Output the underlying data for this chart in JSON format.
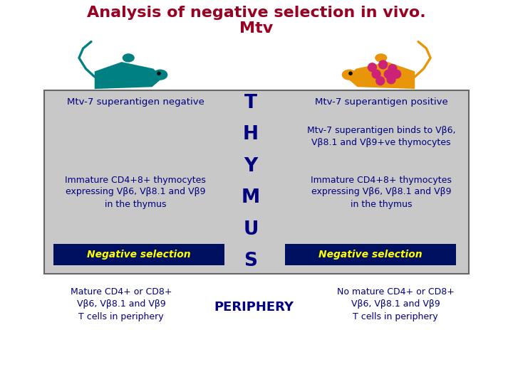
{
  "title_line1": "Analysis of negative selection in vivo.",
  "title_line2": "Mtv",
  "title_color": "#990022",
  "title_fontsize": 16,
  "bg_color": "#ffffff",
  "box_color": "#c8c8c8",
  "box_edge_color": "#666666",
  "text_color_dark": "#000080",
  "thymus_letters": [
    "T",
    "H",
    "Y",
    "M",
    "U",
    "S"
  ],
  "thymus_color": "#000080",
  "neg_sel_bg": "#001060",
  "neg_sel_text": "#ffff00",
  "left_top_label": "Mtv-7 superantigen negative",
  "right_top_label": "Mtv-7 superantigen positive",
  "right_bind_text": "Mtv-7 superantigen binds to Vβ6,\nVβ8.1 and Vβ9+ve thymocytes",
  "left_immature_text": "Immature CD4+8+ thymocytes\nexpressing Vβ6, Vβ8.1 and Vβ9\nin the thymus",
  "right_immature_text": "Immature CD4+8+ thymocytes\nexpressing Vβ6, Vβ8.1 and Vβ9\nin the thymus",
  "neg_sel_label": "Negative selection",
  "left_periphery_text": "Mature CD4+ or CD8+\nVβ6, Vβ8.1 and Vβ9\nT cells in periphery",
  "right_periphery_text": "No mature CD4+ or CD8+\nVβ6, Vβ8.1 and Vβ9\nT cells in periphery",
  "periphery_label": "PERIPHERY",
  "mouse_left_color": "#008080",
  "mouse_right_body_color": "#e8950a",
  "mouse_right_spot_color": "#cc2277"
}
